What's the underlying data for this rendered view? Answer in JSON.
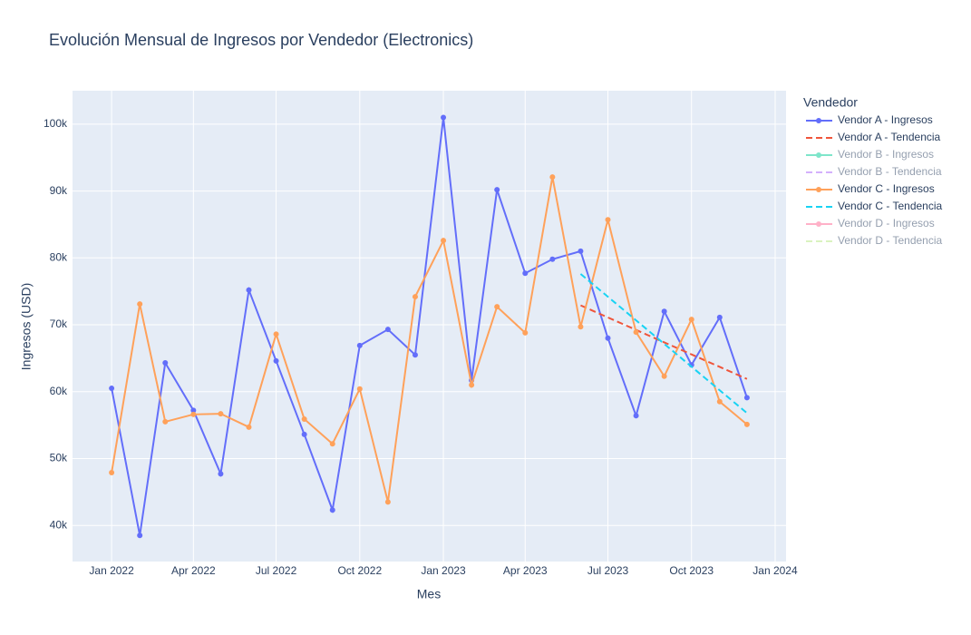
{
  "chart_data": {
    "type": "line",
    "title": "Evolución Mensual de Ingresos por Vendedor (Electronics)",
    "x_label": "Mes",
    "y_label": "Ingresos (USD)",
    "legend_title": "Vendedor",
    "xlim": [
      "2021-11-19",
      "2024-01-13"
    ],
    "xticks": [
      {
        "value": "2022-01",
        "label": "Jan 2022"
      },
      {
        "value": "2022-04",
        "label": "Apr 2022"
      },
      {
        "value": "2022-07",
        "label": "Jul 2022"
      },
      {
        "value": "2022-10",
        "label": "Oct 2022"
      },
      {
        "value": "2023-01",
        "label": "Jan 2023"
      },
      {
        "value": "2023-04",
        "label": "Apr 2023"
      },
      {
        "value": "2023-07",
        "label": "Jul 2023"
      },
      {
        "value": "2023-10",
        "label": "Oct 2023"
      },
      {
        "value": "2024-01",
        "label": "Jan 2024"
      }
    ],
    "ylim": [
      34600,
      105000
    ],
    "yticks": [
      {
        "value": 40000,
        "label": "40k"
      },
      {
        "value": 50000,
        "label": "50k"
      },
      {
        "value": 60000,
        "label": "60k"
      },
      {
        "value": 70000,
        "label": "70k"
      },
      {
        "value": 80000,
        "label": "80k"
      },
      {
        "value": 90000,
        "label": "90k"
      },
      {
        "value": 100000,
        "label": "100k"
      }
    ],
    "grid": true,
    "legend": "outside-right",
    "series": [
      {
        "name": "Vendor A - Ingresos",
        "color": "#636efa",
        "mode": "lines+markers",
        "x": [
          "2022-01",
          "2022-02",
          "2022-03",
          "2022-04",
          "2022-05",
          "2022-06",
          "2022-07",
          "2022-08",
          "2022-09",
          "2022-10",
          "2022-11",
          "2022-12",
          "2023-01",
          "2023-02",
          "2023-03",
          "2023-04",
          "2023-05",
          "2023-06",
          "2023-07",
          "2023-08",
          "2023-09",
          "2023-10",
          "2023-11",
          "2023-12"
        ],
        "values": [
          60500,
          38500,
          64300,
          57200,
          47700,
          75200,
          64600,
          53600,
          42300,
          66900,
          69300,
          65500,
          101000,
          61700,
          90200,
          77700,
          79800,
          81000,
          68000,
          56400,
          72000,
          64000,
          71100,
          59100
        ]
      },
      {
        "name": "Vendor A - Tendencia",
        "color": "#ef553b",
        "mode": "dash",
        "x": [
          "2023-06",
          "2023-12"
        ],
        "values": [
          72900,
          61900
        ]
      },
      {
        "name": "Vendor B - Ingresos",
        "color": "#00cc96",
        "mode": "lines+markers",
        "visible": "legendonly"
      },
      {
        "name": "Vendor B - Tendencia",
        "color": "#ab63fa",
        "mode": "dash",
        "visible": "legendonly"
      },
      {
        "name": "Vendor C - Ingresos",
        "color": "#ffa15a",
        "mode": "lines+markers",
        "x": [
          "2022-01",
          "2022-02",
          "2022-03",
          "2022-04",
          "2022-05",
          "2022-06",
          "2022-07",
          "2022-08",
          "2022-09",
          "2022-10",
          "2022-11",
          "2022-12",
          "2023-01",
          "2023-02",
          "2023-03",
          "2023-04",
          "2023-05",
          "2023-06",
          "2023-07",
          "2023-08",
          "2023-09",
          "2023-10",
          "2023-11",
          "2023-12"
        ],
        "values": [
          47900,
          73100,
          55500,
          56600,
          56700,
          54700,
          68600,
          55900,
          52200,
          60400,
          43500,
          74200,
          82600,
          61000,
          72700,
          68800,
          92100,
          69700,
          85700,
          68900,
          62300,
          70800,
          58500,
          55100
        ]
      },
      {
        "name": "Vendor C - Tendencia",
        "color": "#19d3f3",
        "mode": "dash",
        "x": [
          "2023-06",
          "2023-12"
        ],
        "values": [
          77600,
          56800
        ]
      },
      {
        "name": "Vendor D - Ingresos",
        "color": "#ff6692",
        "mode": "lines+markers",
        "visible": "legendonly"
      },
      {
        "name": "Vendor D - Tendencia",
        "color": "#b6e880",
        "mode": "dash",
        "visible": "legendonly"
      }
    ]
  }
}
